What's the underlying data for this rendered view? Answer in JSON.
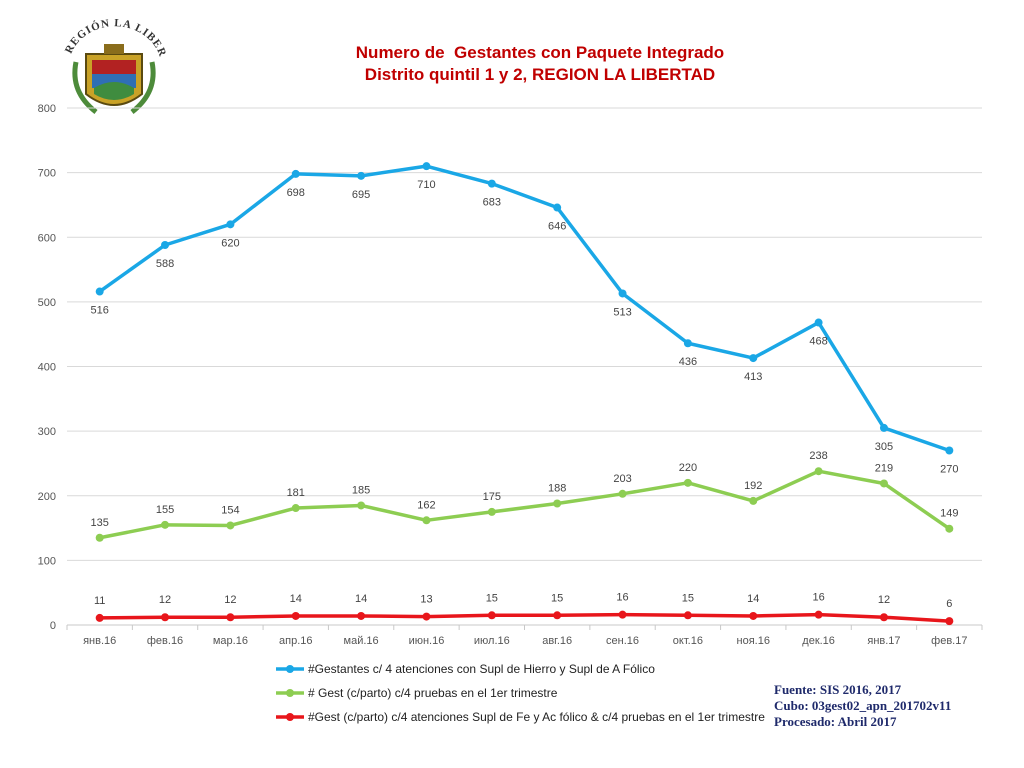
{
  "header": {
    "title_line1": "Numero de  Gestantes con Paquete Integrado",
    "title_line2": "Distrito quintil 1 y 2, REGION LA LIBERTAD",
    "logo_text": "REGIÓN LA LIBERTAD"
  },
  "source": {
    "line1": "Fuente: SIS 2016, 2017",
    "line2": "Cubo: 03gest02_apn_201702v11",
    "line3": "Procesado: Abril 2017"
  },
  "chart_data": {
    "type": "line",
    "title": "Numero de  Gestantes con Paquete Integrado Distrito quintil 1 y 2, REGION LA LIBERTAD",
    "categories": [
      "янв.16",
      "фев.16",
      "мар.16",
      "апр.16",
      "май.16",
      "июн.16",
      "июл.16",
      "авг.16",
      "сен.16",
      "окт.16",
      "ноя.16",
      "дек.16",
      "янв.17",
      "фев.17"
    ],
    "ylim": [
      0,
      800
    ],
    "yticks": [
      0,
      100,
      200,
      300,
      400,
      500,
      600,
      700,
      800
    ],
    "grid": true,
    "legend_position": "bottom",
    "series": [
      {
        "name": "#Gestantes c/ 4 atenciones con Supl de Hierro y Supl de A Fólico",
        "color": "#1aa7e6",
        "label_pos": "below",
        "values": [
          516,
          588,
          620,
          698,
          695,
          710,
          683,
          646,
          513,
          436,
          413,
          468,
          305,
          270
        ]
      },
      {
        "name": "# Gest (c/parto) c/4 pruebas en el 1er trimestre",
        "color": "#8dcd52",
        "label_pos": "above",
        "values": [
          135,
          155,
          154,
          181,
          185,
          162,
          175,
          188,
          203,
          220,
          192,
          238,
          219,
          149
        ]
      },
      {
        "name": "#Gest (c/parto) c/4 atenciones Supl de Fe y Ac fólico & c/4 pruebas en el 1er trimestre",
        "color": "#e8161b",
        "label_pos": "above",
        "values": [
          11,
          12,
          12,
          14,
          14,
          13,
          15,
          15,
          16,
          15,
          14,
          16,
          12,
          6
        ]
      }
    ]
  }
}
